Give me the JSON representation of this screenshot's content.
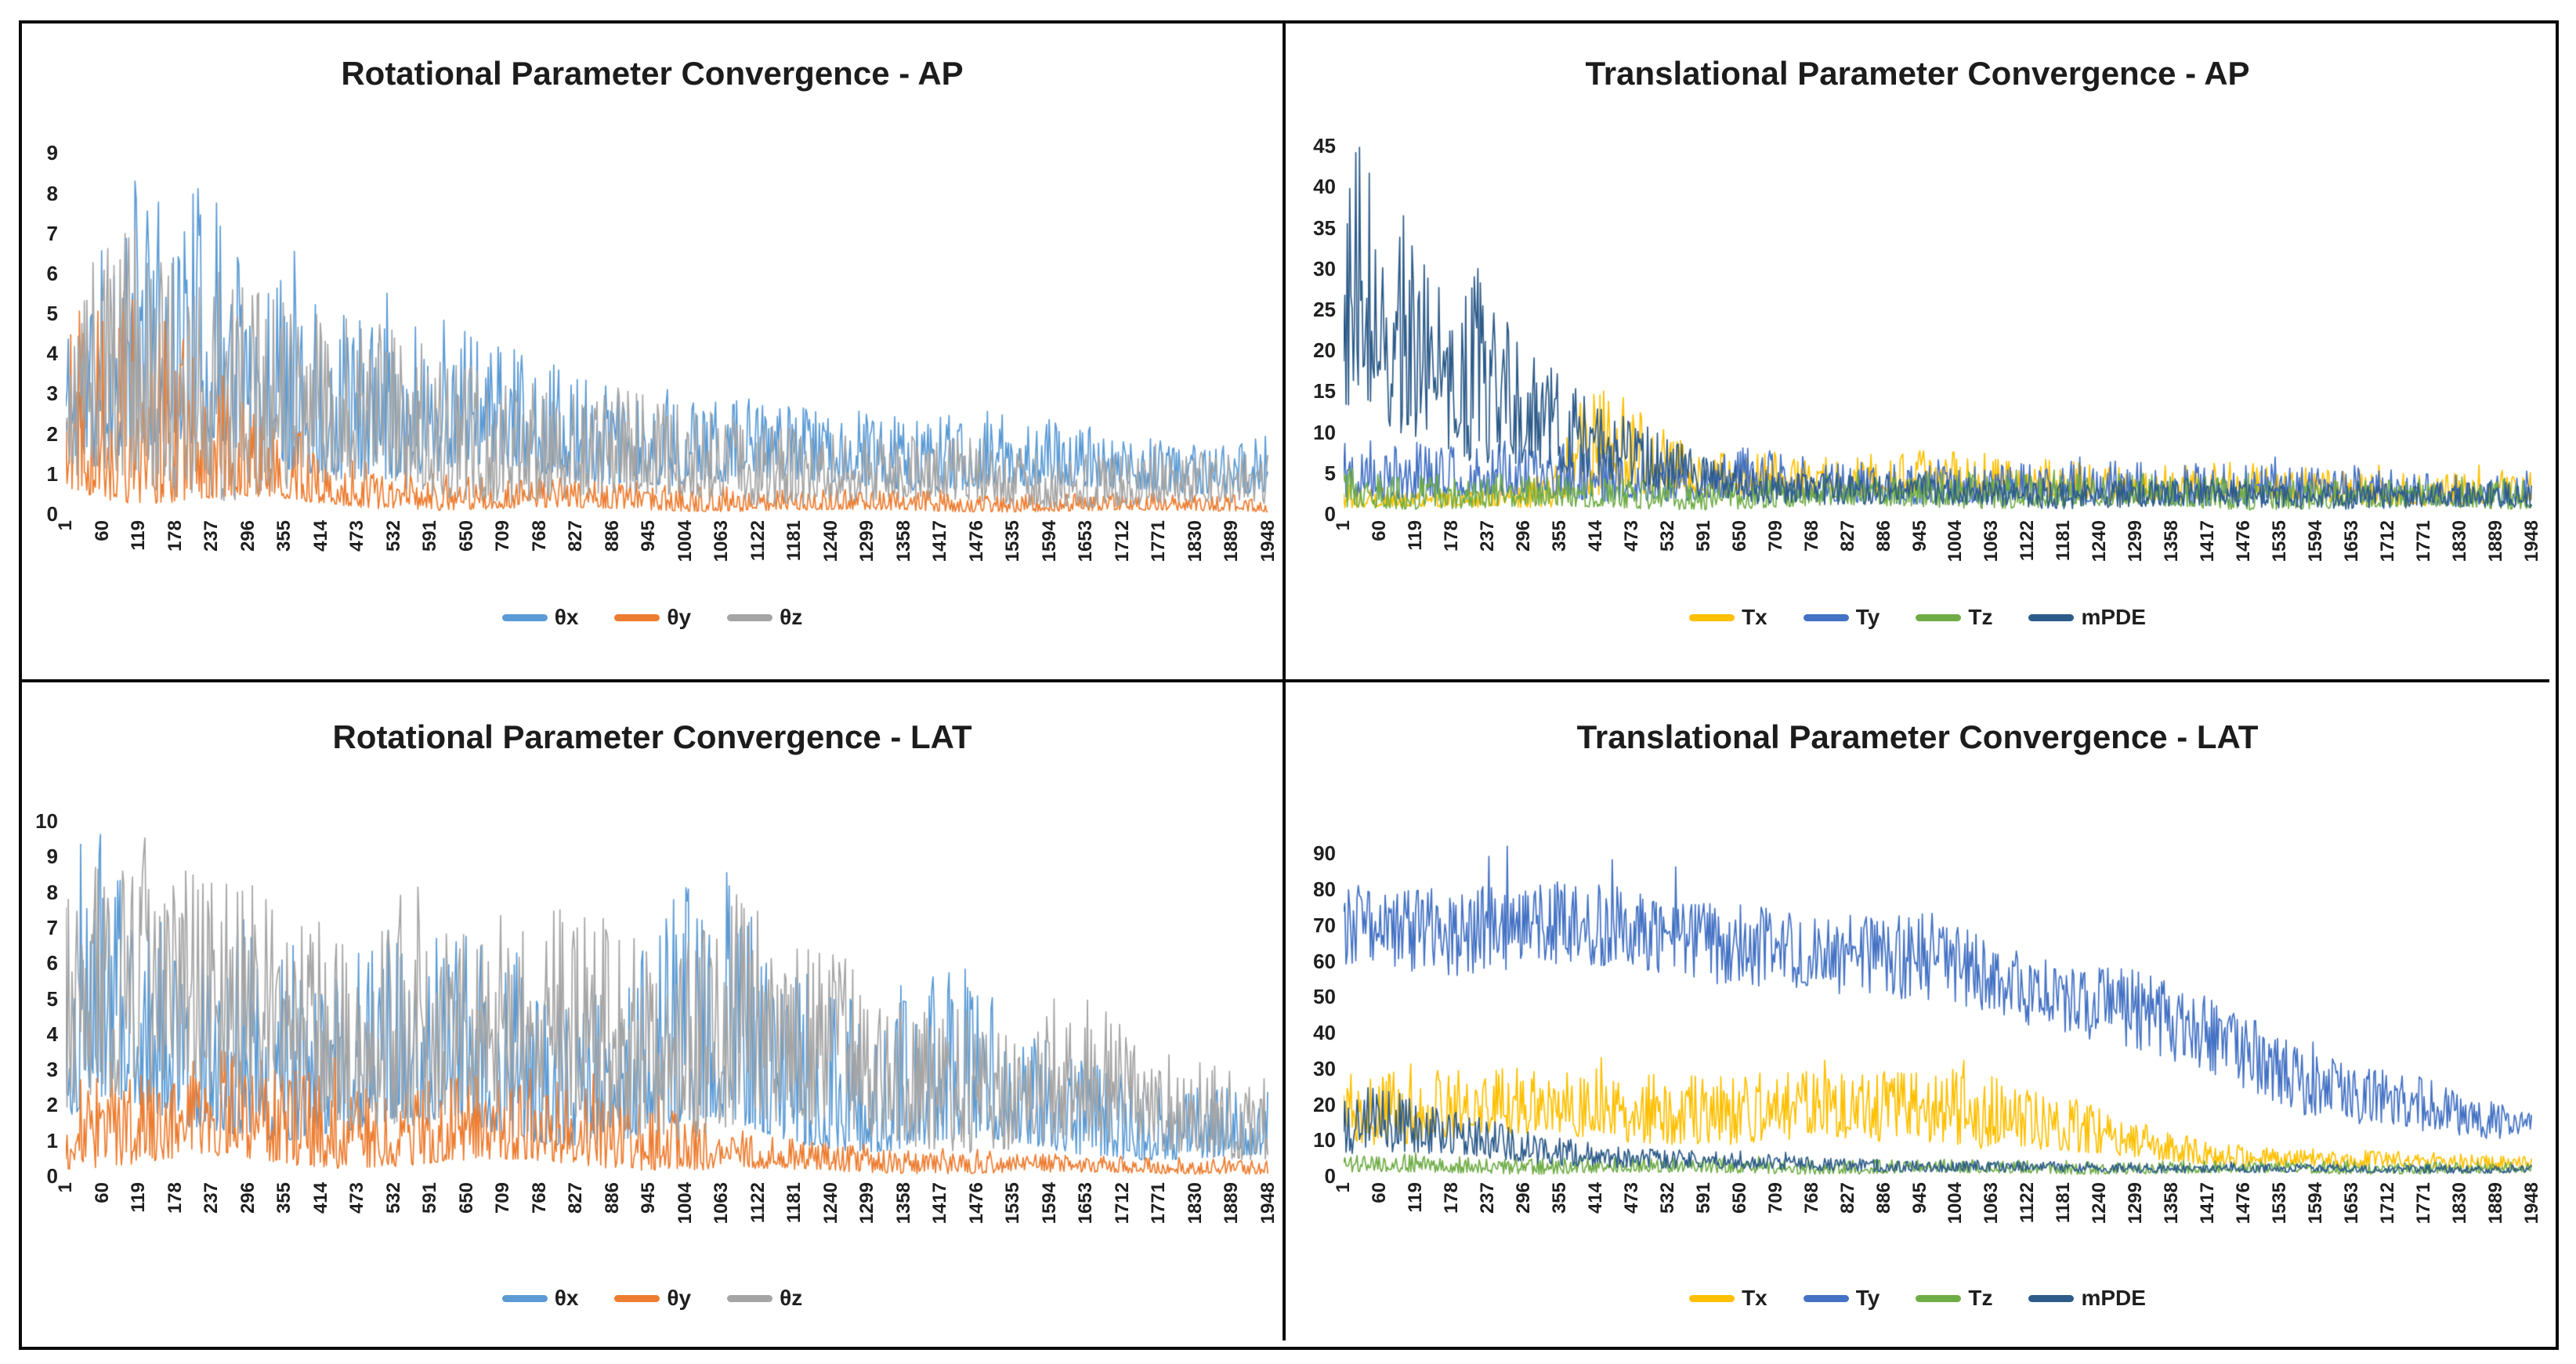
{
  "page": {
    "background": "#ffffff",
    "frame_border_color": "#0a0a0a",
    "text_color": "#1f1f1f"
  },
  "chart_data": [
    {
      "type": "line",
      "title": "Rotational Parameter Convergence - AP",
      "xlabel": "",
      "ylabel": "",
      "grid": false,
      "legend_position": "bottom-center",
      "ylim": [
        0,
        9.3
      ],
      "y_ticks": [
        0,
        1,
        2,
        3,
        4,
        5,
        6,
        7,
        8,
        9
      ],
      "x_labels": [
        1,
        60,
        119,
        178,
        237,
        296,
        355,
        414,
        473,
        532,
        591,
        650,
        709,
        768,
        827,
        886,
        945,
        1004,
        1063,
        1122,
        1181,
        1240,
        1299,
        1358,
        1417,
        1476,
        1535,
        1594,
        1653,
        1712,
        1771,
        1830,
        1889,
        1948
      ],
      "note": "Dense noisy iteration traces (~1948 points). Series stored as envelope keypoints (env_x with low/high bounds) estimated from the plot.",
      "series": [
        {
          "name": "θx",
          "color": "#5B9BD5",
          "dist": 1.7,
          "spike": 0.02,
          "seed": 11,
          "env_x": [
            1,
            30,
            80,
            115,
            145,
            210,
            300,
            420,
            560,
            720,
            900,
            1100,
            1300,
            1500,
            1700,
            1948
          ],
          "env_hi": [
            5.2,
            5.8,
            7.2,
            8.3,
            7.4,
            7.6,
            6.3,
            5.3,
            4.7,
            3.8,
            3.1,
            2.7,
            2.4,
            2.5,
            1.8,
            1.9
          ],
          "env_lo": [
            1.5,
            1.0,
            1.2,
            1.4,
            1.2,
            1.0,
            0.9,
            0.85,
            0.8,
            0.75,
            0.7,
            0.65,
            0.6,
            0.55,
            0.5,
            0.5
          ]
        },
        {
          "name": "θy",
          "color": "#ED7D31",
          "dist": 2.0,
          "spike": 0.03,
          "seed": 22,
          "env_x": [
            1,
            25,
            60,
            120,
            200,
            300,
            400,
            520,
            700,
            900,
            1100,
            1400,
            1948
          ],
          "env_hi": [
            4.8,
            6.3,
            6.0,
            5.3,
            4.2,
            2.7,
            1.7,
            1.1,
            0.9,
            0.8,
            0.6,
            0.5,
            0.45
          ],
          "env_lo": [
            0.25,
            0.3,
            0.3,
            0.25,
            0.2,
            0.15,
            0.12,
            0.1,
            0.08,
            0.07,
            0.06,
            0.05,
            0.05
          ]
        },
        {
          "name": "θz",
          "color": "#A5A5A5",
          "dist": 1.5,
          "spike": 0.015,
          "seed": 33,
          "env_x": [
            1,
            45,
            75,
            150,
            250,
            360,
            500,
            650,
            800,
            1000,
            1200,
            1400,
            1600,
            1948
          ],
          "env_hi": [
            3.6,
            6.6,
            7.3,
            6.1,
            6.3,
            5.1,
            4.4,
            3.7,
            3.1,
            2.5,
            2.1,
            1.8,
            1.5,
            1.4
          ],
          "env_lo": [
            0.3,
            0.4,
            0.4,
            0.35,
            0.3,
            0.3,
            0.3,
            0.25,
            0.25,
            0.2,
            0.2,
            0.18,
            0.15,
            0.15
          ]
        }
      ]
    },
    {
      "type": "line",
      "title": "Translational Parameter Convergence - AP",
      "xlabel": "",
      "ylabel": "",
      "grid": false,
      "legend_position": "bottom-center",
      "ylim": [
        0,
        45.6
      ],
      "y_ticks": [
        0,
        5,
        10,
        15,
        20,
        25,
        30,
        35,
        40,
        45
      ],
      "x_labels": [
        1,
        60,
        119,
        178,
        237,
        296,
        355,
        414,
        473,
        532,
        591,
        650,
        709,
        768,
        827,
        886,
        945,
        1004,
        1063,
        1122,
        1181,
        1240,
        1299,
        1358,
        1417,
        1476,
        1535,
        1594,
        1653,
        1712,
        1771,
        1830,
        1889,
        1948
      ],
      "note": "Dense noisy iteration traces (~1948 points). Series stored as envelope keypoints estimated from the plot. mPDE peaks ~43 at start.",
      "series": [
        {
          "name": "Tx",
          "color": "#FFC000",
          "dist": 1.7,
          "spike": 0.02,
          "seed": 44,
          "env_x": [
            1,
            200,
            340,
            390,
            450,
            520,
            600,
            700,
            800,
            950,
            1100,
            1300,
            1500,
            1700,
            1948
          ],
          "env_hi": [
            3,
            3,
            5,
            14,
            15.5,
            9,
            7,
            7.5,
            7,
            7.5,
            6.5,
            6,
            5.8,
            5,
            5.2
          ],
          "env_lo": [
            0.6,
            0.6,
            0.8,
            2,
            2,
            1.5,
            1.5,
            2,
            2,
            2,
            1.6,
            1.5,
            1.3,
            1,
            1
          ]
        },
        {
          "name": "Ty",
          "color": "#4472C4",
          "dist": 1.9,
          "spike": 0.02,
          "seed": 55,
          "env_x": [
            1,
            25,
            60,
            150,
            300,
            450,
            550,
            650,
            800,
            1000,
            1200,
            1400,
            1600,
            1800,
            1948
          ],
          "env_hi": [
            15,
            12,
            9.5,
            8,
            8.2,
            8.5,
            7.2,
            8,
            6.2,
            6,
            6,
            6.5,
            5.6,
            5,
            4.6
          ],
          "env_lo": [
            2,
            2,
            1.6,
            1.5,
            1.5,
            1.5,
            1.4,
            1.4,
            1.2,
            1.2,
            1,
            1,
            1,
            1,
            1
          ]
        },
        {
          "name": "Tz",
          "color": "#70AD47",
          "dist": 1.6,
          "spike": 0.02,
          "seed": 66,
          "env_x": [
            1,
            100,
            250,
            400,
            600,
            800,
            1000,
            1200,
            1400,
            1600,
            1948
          ],
          "env_hi": [
            5.6,
            5,
            4.6,
            4.1,
            4,
            4.6,
            5,
            4.6,
            4.5,
            4,
            4.1
          ],
          "env_lo": [
            0.6,
            0.6,
            0.5,
            0.5,
            0.5,
            0.6,
            0.7,
            0.6,
            0.5,
            0.5,
            0.5
          ]
        },
        {
          "name": "mPDE",
          "color": "#2E5C8A",
          "dist": 1.25,
          "spike": 0.012,
          "seed": 77,
          "env_x": [
            1,
            15,
            45,
            85,
            125,
            165,
            225,
            285,
            350,
            420,
            500,
            600,
            700,
            850,
            1000,
            1300,
            1600,
            1948
          ],
          "env_hi": [
            31,
            43,
            35,
            32,
            33,
            26,
            30.5,
            22,
            16.5,
            12,
            10,
            6.5,
            5.2,
            4.6,
            4.2,
            4,
            3.6,
            3.6
          ],
          "env_lo": [
            8,
            10,
            9,
            8,
            8,
            7,
            6,
            5,
            4,
            3,
            2.5,
            1.6,
            1.1,
            0.9,
            0.7,
            0.6,
            0.55,
            0.5
          ]
        }
      ]
    },
    {
      "type": "line",
      "title": "Rotational Parameter Convergence - LAT",
      "xlabel": "",
      "ylabel": "",
      "grid": false,
      "legend_position": "bottom-center",
      "ylim": [
        0,
        10.2
      ],
      "y_ticks": [
        0,
        1,
        2,
        3,
        4,
        5,
        6,
        7,
        8,
        9,
        10
      ],
      "x_labels": [
        1,
        60,
        119,
        178,
        237,
        296,
        355,
        414,
        473,
        532,
        591,
        650,
        709,
        768,
        827,
        886,
        945,
        1004,
        1063,
        1122,
        1181,
        1240,
        1299,
        1358,
        1417,
        1476,
        1535,
        1594,
        1653,
        1712,
        1771,
        1830,
        1889,
        1948
      ],
      "note": "Dense noisy iteration traces (~1948 points). Gray θz dominates (peak ~9.6 near x=125), slowly converging; θx shows sporadic tall spikes.",
      "series": [
        {
          "name": "θx",
          "color": "#5B9BD5",
          "dist": 2.1,
          "spike": 0.025,
          "seed": 88,
          "env_x": [
            1,
            40,
            90,
            130,
            200,
            290,
            320,
            420,
            540,
            580,
            700,
            850,
            1000,
            1060,
            1140,
            1250,
            1400,
            1460,
            1600,
            1750,
            1948
          ],
          "env_hi": [
            6.5,
            8.6,
            8.2,
            7,
            5.2,
            7.8,
            5.8,
            5.4,
            6.6,
            6.4,
            6.2,
            5,
            7.6,
            8,
            6.2,
            5,
            5.6,
            5.4,
            3.4,
            2.6,
            2.2
          ],
          "env_lo": [
            1.2,
            1.5,
            1.3,
            1.1,
            1,
            1,
            1,
            1,
            1,
            0.95,
            0.9,
            0.85,
            0.8,
            0.8,
            0.75,
            0.7,
            0.6,
            0.55,
            0.5,
            0.45,
            0.4
          ]
        },
        {
          "name": "θy",
          "color": "#ED7D31",
          "dist": 1.7,
          "spike": 0.03,
          "seed": 99,
          "env_x": [
            1,
            100,
            250,
            400,
            550,
            700,
            850,
            950,
            1050,
            1200,
            1400,
            1600,
            1948
          ],
          "env_hi": [
            2.9,
            2.6,
            3.2,
            2.9,
            2.6,
            2.5,
            2.7,
            2.1,
            1.3,
            0.9,
            0.7,
            0.55,
            0.45
          ],
          "env_lo": [
            0.2,
            0.2,
            0.2,
            0.2,
            0.2,
            0.2,
            0.2,
            0.15,
            0.1,
            0.08,
            0.06,
            0.05,
            0.05
          ]
        },
        {
          "name": "θz",
          "color": "#A5A5A5",
          "dist": 1.35,
          "spike": 0.012,
          "seed": 111,
          "env_x": [
            1,
            30,
            80,
            125,
            180,
            250,
            350,
            450,
            550,
            700,
            850,
            1000,
            1075,
            1200,
            1350,
            1500,
            1650,
            1800,
            1948
          ],
          "env_hi": [
            7.6,
            8.8,
            9.1,
            9.6,
            8.2,
            7.6,
            7.4,
            6.7,
            7.1,
            6.7,
            7.2,
            6.4,
            7.9,
            6.1,
            5.3,
            4.4,
            4.7,
            3.3,
            2.8
          ],
          "env_lo": [
            1.6,
            2,
            2.2,
            2,
            1.8,
            1.6,
            1.5,
            1.4,
            1.3,
            1.2,
            1.1,
            1,
            0.95,
            0.85,
            0.7,
            0.6,
            0.5,
            0.5,
            0.45
          ]
        }
      ]
    },
    {
      "type": "line",
      "title": "Translational Parameter Convergence - LAT",
      "xlabel": "",
      "ylabel": "",
      "grid": false,
      "legend_position": "bottom-center",
      "ylim": [
        0,
        101
      ],
      "y_ticks": [
        0,
        10,
        20,
        30,
        40,
        50,
        60,
        70,
        80,
        90
      ],
      "x_labels": [
        1,
        60,
        119,
        178,
        237,
        296,
        355,
        414,
        473,
        532,
        591,
        650,
        709,
        768,
        827,
        886,
        945,
        1004,
        1063,
        1122,
        1181,
        1240,
        1299,
        1358,
        1417,
        1476,
        1535,
        1594,
        1653,
        1712,
        1771,
        1830,
        1889,
        1948
      ],
      "note": "Dense noisy iteration traces (~1948 points). Ty rides a wide 55-80 band then descends to ~10 by the end; Tx band ~8-30 collapsing after x~1100.",
      "series": [
        {
          "name": "Tx",
          "color": "#FFC000",
          "dist": 1.3,
          "spike": 0.012,
          "seed": 123,
          "env_x": [
            1,
            100,
            250,
            400,
            600,
            800,
            1000,
            1100,
            1200,
            1300,
            1400,
            1500,
            1700,
            1948
          ],
          "env_hi": [
            27,
            30,
            28,
            28.5,
            28,
            27,
            30,
            26,
            20,
            14,
            10.5,
            8,
            6.5,
            5.5
          ],
          "env_lo": [
            8,
            9,
            10,
            9,
            8,
            8,
            8,
            7,
            5,
            4,
            3,
            2.5,
            2,
            1.6
          ]
        },
        {
          "name": "Ty",
          "color": "#4472C4",
          "dist": 1.0,
          "spike": 0.008,
          "seed": 134,
          "env_x": [
            1,
            60,
            150,
            250,
            350,
            450,
            550,
            650,
            750,
            850,
            950,
            1050,
            1150,
            1250,
            1350,
            1450,
            1550,
            1650,
            1750,
            1850,
            1948
          ],
          "env_hi": [
            80,
            78,
            80,
            81,
            80,
            78,
            76,
            76,
            73,
            70,
            72,
            66,
            62,
            58,
            52,
            46,
            38,
            31,
            27,
            21,
            17
          ],
          "env_lo": [
            56,
            58,
            55,
            57,
            56,
            55,
            54,
            53,
            50,
            48,
            45,
            44,
            40,
            36,
            30,
            25,
            18,
            14,
            11,
            9,
            8
          ]
        },
        {
          "name": "Tz",
          "color": "#70AD47",
          "dist": 1.5,
          "spike": 0.015,
          "seed": 145,
          "env_x": [
            1,
            200,
            400,
            700,
            1000,
            1300,
            1600,
            1948
          ],
          "env_hi": [
            6,
            5.2,
            5,
            4.6,
            4.2,
            4,
            4,
            3.6
          ],
          "env_lo": [
            0.6,
            0.5,
            0.5,
            0.5,
            0.5,
            0.5,
            0.5,
            0.5
          ]
        },
        {
          "name": "mPDE",
          "color": "#2E5C8A",
          "dist": 1.3,
          "spike": 0.012,
          "seed": 156,
          "env_x": [
            1,
            50,
            120,
            200,
            300,
            400,
            500,
            650,
            800,
            1000,
            1200,
            1500,
            1948
          ],
          "env_hi": [
            22,
            25,
            20,
            16,
            12.5,
            9.5,
            7.5,
            6,
            5,
            4.2,
            3.6,
            3.2,
            3
          ],
          "env_lo": [
            5,
            6,
            5,
            4,
            3,
            2.5,
            2,
            1.6,
            1.2,
            1,
            0.9,
            0.8,
            0.7
          ]
        }
      ]
    }
  ]
}
